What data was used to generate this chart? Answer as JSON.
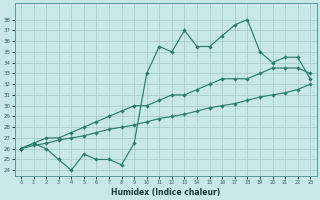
{
  "xlabel": "Humidex (Indice chaleur)",
  "bg_color": "#c8e8e8",
  "line_color": "#2d7d6e",
  "grid_color": "#a8cccc",
  "x_values": [
    0,
    1,
    2,
    3,
    4,
    5,
    6,
    7,
    8,
    9,
    10,
    11,
    12,
    13,
    14,
    15,
    16,
    17,
    18,
    19,
    20,
    21,
    22,
    23
  ],
  "line_jagged": [
    26.0,
    26.5,
    26.0,
    25.0,
    24.0,
    25.5,
    25.0,
    25.0,
    24.5,
    26.5,
    33.0,
    35.5,
    35.0,
    37.0,
    35.5,
    35.5,
    36.5,
    37.5,
    38.0,
    35.0,
    34.0,
    34.5,
    34.5,
    32.5
  ],
  "line_upper": [
    26.0,
    26.5,
    27.0,
    27.0,
    27.5,
    28.0,
    28.5,
    29.0,
    29.5,
    30.0,
    30.0,
    30.5,
    31.0,
    31.0,
    31.5,
    32.0,
    32.5,
    32.5,
    32.5,
    33.0,
    33.5,
    33.5,
    33.5,
    33.0
  ],
  "line_lower": [
    26.0,
    26.3,
    26.5,
    26.8,
    27.0,
    27.2,
    27.5,
    27.8,
    28.0,
    28.2,
    28.5,
    28.8,
    29.0,
    29.2,
    29.5,
    29.8,
    30.0,
    30.2,
    30.5,
    30.8,
    31.0,
    31.2,
    31.5,
    32.0
  ],
  "ylim": [
    23.5,
    39.5
  ],
  "xlim": [
    -0.5,
    23.5
  ],
  "yticks": [
    24,
    25,
    26,
    27,
    28,
    29,
    30,
    31,
    32,
    33,
    34,
    35,
    36,
    37,
    38
  ],
  "xticks": [
    0,
    1,
    2,
    3,
    4,
    5,
    6,
    7,
    8,
    9,
    10,
    11,
    12,
    13,
    14,
    15,
    16,
    17,
    18,
    19,
    20,
    21,
    22,
    23
  ]
}
